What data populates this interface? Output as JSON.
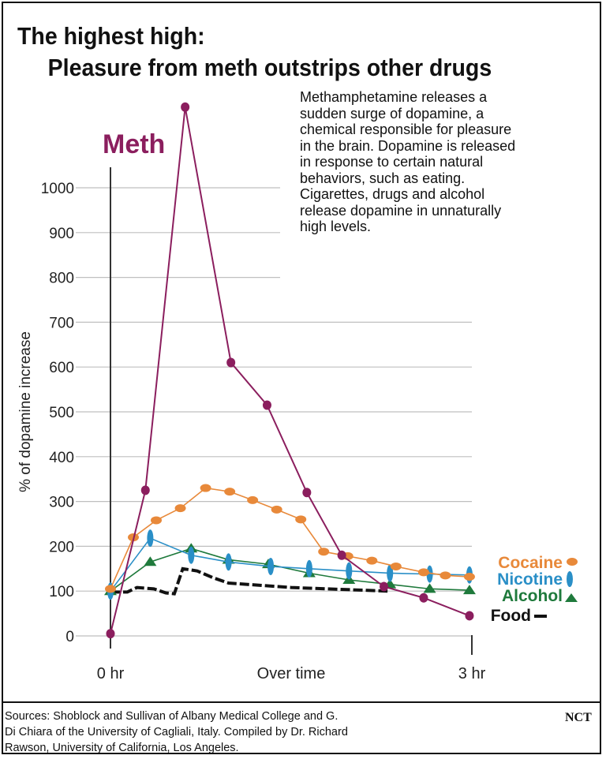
{
  "title_lines": [
    "The highest high:",
    "Pleasure from meth outstrips other drugs"
  ],
  "blurb_lines": [
    "Methamphetamine releases a",
    "sudden surge of dopamine, a",
    "chemical responsible for pleasure",
    "in the brain. Dopamine is released",
    "in response to certain natural",
    "behaviors, such as eating.",
    "Cigarettes, drugs and alcohol",
    "release dopamine in unnaturally",
    "high levels."
  ],
  "source_lines": [
    "Sources: Shoblock and Sullivan of Albany Medical College and G.",
    "Di Chiara of the University of Cagliali, Italy. Compiled by Dr. Richard",
    "Rawson, University of California, Los Angeles."
  ],
  "credit": "NCT",
  "colors": {
    "meth": "#8b1e5e",
    "cocaine": "#e8893a",
    "nicotine": "#2a8fc7",
    "alcohol": "#1f7a3c",
    "food": "#111111",
    "grid": "#bfbfbf",
    "axis": "#333333"
  },
  "chart_data": {
    "type": "line",
    "title": "The highest high: Pleasure from meth outstrips other drugs",
    "xlabel": "Over time",
    "ylabel": "% of dopamine increase",
    "x_tick_labels": [
      {
        "x": 0,
        "label": "0 hr"
      },
      {
        "x": 1.5,
        "label": "Over time"
      },
      {
        "x": 3,
        "label": "3 hr"
      }
    ],
    "xlim": [
      0,
      3
    ],
    "ylim": [
      0,
      1100
    ],
    "y_ticks": [
      0,
      100,
      200,
      300,
      400,
      500,
      600,
      700,
      800,
      900,
      1000
    ],
    "grid": true,
    "series": [
      {
        "name": "Meth",
        "color_key": "meth",
        "marker": "dot",
        "points": [
          [
            0,
            5
          ],
          [
            0.29,
            325
          ],
          [
            0.62,
            1180
          ],
          [
            1.0,
            610
          ],
          [
            1.3,
            515
          ],
          [
            1.63,
            320
          ],
          [
            1.92,
            180
          ],
          [
            2.27,
            110
          ],
          [
            2.6,
            85
          ],
          [
            2.98,
            45
          ]
        ]
      },
      {
        "name": "Cocaine",
        "color_key": "cocaine",
        "marker": "dot",
        "points": [
          [
            0,
            105
          ],
          [
            0.19,
            220
          ],
          [
            0.38,
            258
          ],
          [
            0.58,
            285
          ],
          [
            0.79,
            330
          ],
          [
            0.99,
            322
          ],
          [
            1.18,
            303
          ],
          [
            1.38,
            282
          ],
          [
            1.58,
            260
          ],
          [
            1.77,
            188
          ],
          [
            1.97,
            178
          ],
          [
            2.17,
            168
          ],
          [
            2.37,
            155
          ],
          [
            2.6,
            142
          ],
          [
            2.78,
            135
          ],
          [
            2.98,
            132
          ]
        ]
      },
      {
        "name": "Nicotine",
        "color_key": "nicotine",
        "marker": "capsule",
        "points": [
          [
            0,
            100
          ],
          [
            0.33,
            218
          ],
          [
            0.67,
            180
          ],
          [
            0.98,
            165
          ],
          [
            1.33,
            155
          ],
          [
            1.65,
            150
          ],
          [
            1.98,
            145
          ],
          [
            2.32,
            140
          ],
          [
            2.65,
            138
          ],
          [
            2.98,
            136
          ]
        ]
      },
      {
        "name": "Alcohol",
        "color_key": "alcohol",
        "marker": "triangle",
        "points": [
          [
            0,
            100
          ],
          [
            0.33,
            165
          ],
          [
            0.67,
            195
          ],
          [
            0.98,
            170
          ],
          [
            1.31,
            160
          ],
          [
            1.65,
            140
          ],
          [
            1.98,
            125
          ],
          [
            2.32,
            115
          ],
          [
            2.65,
            105
          ],
          [
            2.98,
            102
          ]
        ]
      },
      {
        "name": "Food",
        "color_key": "food",
        "marker": "none",
        "points": [
          [
            0,
            98
          ],
          [
            0.14,
            98
          ],
          [
            0.22,
            108
          ],
          [
            0.36,
            105
          ],
          [
            0.46,
            96
          ],
          [
            0.53,
            94
          ],
          [
            0.6,
            150
          ],
          [
            0.72,
            145
          ],
          [
            0.85,
            130
          ],
          [
            0.98,
            118
          ],
          [
            1.5,
            108
          ],
          [
            2.3,
            100
          ]
        ]
      }
    ],
    "legend": {
      "placement": "right",
      "items": [
        "Cocaine",
        "Nicotine",
        "Alcohol",
        "Food"
      ]
    },
    "annotations": [
      {
        "text": "Meth",
        "series": "Meth"
      }
    ]
  }
}
